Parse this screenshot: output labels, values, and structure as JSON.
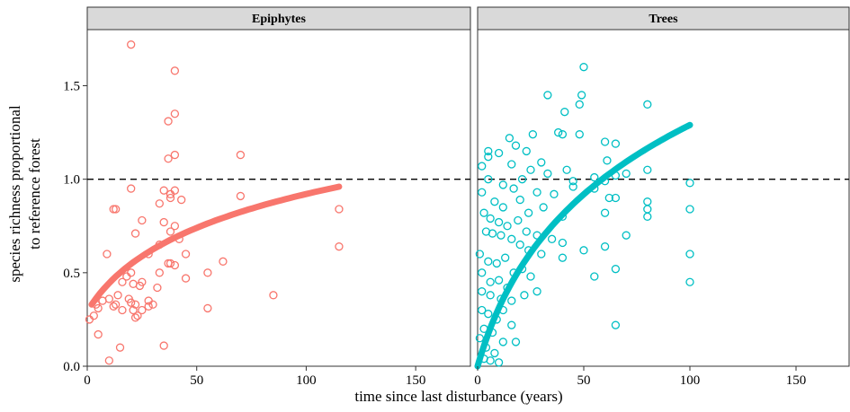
{
  "chart_data": {
    "type": "scatter",
    "xlabel": "time since last disturbance (years)",
    "ylabel": "species richness proportional to reference forest",
    "ylabel_lines": [
      "species richness proportional",
      "to reference forest"
    ],
    "xlim": [
      0,
      175
    ],
    "ylim": [
      0,
      1.8
    ],
    "x_ticks": [
      0,
      50,
      100,
      150
    ],
    "y_ticks": [
      0.0,
      0.5,
      1.0,
      1.5
    ],
    "y_tick_labels": [
      "0.0",
      "0.5",
      "1.0",
      "1.5"
    ],
    "reference_line": 1.0,
    "grid": false,
    "panels": [
      {
        "name": "Epiphytes",
        "color": "#f8766d",
        "points": [
          [
            20,
            1.72
          ],
          [
            40,
            1.58
          ],
          [
            40,
            1.35
          ],
          [
            37,
            1.31
          ],
          [
            70,
            1.13
          ],
          [
            40,
            1.13
          ],
          [
            37,
            1.11
          ],
          [
            20,
            0.95
          ],
          [
            35,
            0.94
          ],
          [
            40,
            0.94
          ],
          [
            38,
            0.92
          ],
          [
            43,
            0.89
          ],
          [
            70,
            0.91
          ],
          [
            33,
            0.87
          ],
          [
            38,
            0.9
          ],
          [
            12,
            0.84
          ],
          [
            13,
            0.84
          ],
          [
            35,
            0.77
          ],
          [
            25,
            0.78
          ],
          [
            40,
            0.75
          ],
          [
            22,
            0.71
          ],
          [
            38,
            0.72
          ],
          [
            42,
            0.68
          ],
          [
            33,
            0.65
          ],
          [
            28,
            0.6
          ],
          [
            45,
            0.6
          ],
          [
            9,
            0.6
          ],
          [
            62,
            0.56
          ],
          [
            37,
            0.55
          ],
          [
            38,
            0.55
          ],
          [
            40,
            0.54
          ],
          [
            20,
            0.5
          ],
          [
            25,
            0.45
          ],
          [
            33,
            0.5
          ],
          [
            55,
            0.5
          ],
          [
            18,
            0.48
          ],
          [
            16,
            0.45
          ],
          [
            21,
            0.44
          ],
          [
            32,
            0.42
          ],
          [
            45,
            0.47
          ],
          [
            24,
            0.43
          ],
          [
            14,
            0.38
          ],
          [
            19,
            0.36
          ],
          [
            28,
            0.35
          ],
          [
            30,
            0.33
          ],
          [
            7,
            0.35
          ],
          [
            10,
            0.36
          ],
          [
            5,
            0.31
          ],
          [
            20,
            0.34
          ],
          [
            22,
            0.33
          ],
          [
            4,
            0.33
          ],
          [
            12,
            0.32
          ],
          [
            85,
            0.38
          ],
          [
            3,
            0.27
          ],
          [
            21,
            0.3
          ],
          [
            23,
            0.27
          ],
          [
            25,
            0.3
          ],
          [
            16,
            0.3
          ],
          [
            55,
            0.31
          ],
          [
            28,
            0.32
          ],
          [
            13,
            0.33
          ],
          [
            22,
            0.26
          ],
          [
            1,
            0.25
          ],
          [
            5,
            0.17
          ],
          [
            15,
            0.1
          ],
          [
            35,
            0.11
          ],
          [
            10,
            0.03
          ],
          [
            115,
            0.84
          ],
          [
            115,
            0.64
          ]
        ],
        "fit": {
          "x_start": 2,
          "x_end": 115,
          "y_start": 0.33,
          "y_end": 0.96
        }
      },
      {
        "name": "Trees",
        "color": "#00bfc4",
        "points": [
          [
            50,
            1.6
          ],
          [
            49,
            1.45
          ],
          [
            33,
            1.45
          ],
          [
            48,
            1.4
          ],
          [
            41,
            1.36
          ],
          [
            80,
            1.4
          ],
          [
            40,
            1.24
          ],
          [
            26,
            1.24
          ],
          [
            38,
            1.25
          ],
          [
            48,
            1.24
          ],
          [
            60,
            1.2
          ],
          [
            65,
            1.19
          ],
          [
            61,
            1.1
          ],
          [
            15,
            1.22
          ],
          [
            18,
            1.18
          ],
          [
            5,
            1.15
          ],
          [
            5,
            1.12
          ],
          [
            10,
            1.14
          ],
          [
            23,
            1.15
          ],
          [
            16,
            1.08
          ],
          [
            30,
            1.09
          ],
          [
            25,
            1.05
          ],
          [
            33,
            1.03
          ],
          [
            42,
            1.05
          ],
          [
            2,
            1.07
          ],
          [
            45,
            0.99
          ],
          [
            55,
            1.01
          ],
          [
            70,
            1.03
          ],
          [
            80,
            1.05
          ],
          [
            65,
            1.02
          ],
          [
            60,
            0.99
          ],
          [
            5,
            1.0
          ],
          [
            12,
            0.97
          ],
          [
            17,
            0.95
          ],
          [
            21,
            1.0
          ],
          [
            28,
            0.93
          ],
          [
            36,
            0.92
          ],
          [
            45,
            0.96
          ],
          [
            62,
            0.9
          ],
          [
            55,
            0.95
          ],
          [
            65,
            0.9
          ],
          [
            80,
            0.88
          ],
          [
            80,
            0.84
          ],
          [
            100,
            0.98
          ],
          [
            100,
            0.84
          ],
          [
            2,
            0.93
          ],
          [
            8,
            0.88
          ],
          [
            12,
            0.85
          ],
          [
            20,
            0.89
          ],
          [
            24,
            0.82
          ],
          [
            31,
            0.85
          ],
          [
            40,
            0.8
          ],
          [
            60,
            0.82
          ],
          [
            80,
            0.8
          ],
          [
            3,
            0.82
          ],
          [
            6,
            0.79
          ],
          [
            10,
            0.77
          ],
          [
            14,
            0.75
          ],
          [
            19,
            0.78
          ],
          [
            23,
            0.72
          ],
          [
            28,
            0.7
          ],
          [
            35,
            0.68
          ],
          [
            40,
            0.66
          ],
          [
            50,
            0.62
          ],
          [
            4,
            0.72
          ],
          [
            7,
            0.71
          ],
          [
            11,
            0.7
          ],
          [
            16,
            0.68
          ],
          [
            20,
            0.65
          ],
          [
            24,
            0.62
          ],
          [
            30,
            0.6
          ],
          [
            40,
            0.58
          ],
          [
            55,
            0.48
          ],
          [
            65,
            0.52
          ],
          [
            60,
            0.64
          ],
          [
            70,
            0.7
          ],
          [
            1,
            0.6
          ],
          [
            5,
            0.56
          ],
          [
            9,
            0.55
          ],
          [
            13,
            0.58
          ],
          [
            17,
            0.5
          ],
          [
            21,
            0.52
          ],
          [
            25,
            0.48
          ],
          [
            2,
            0.5
          ],
          [
            6,
            0.45
          ],
          [
            10,
            0.46
          ],
          [
            14,
            0.42
          ],
          [
            22,
            0.38
          ],
          [
            28,
            0.4
          ],
          [
            100,
            0.6
          ],
          [
            100,
            0.45
          ],
          [
            2,
            0.4
          ],
          [
            6,
            0.38
          ],
          [
            11,
            0.36
          ],
          [
            16,
            0.35
          ],
          [
            2,
            0.3
          ],
          [
            5,
            0.28
          ],
          [
            9,
            0.25
          ],
          [
            12,
            0.3
          ],
          [
            16,
            0.22
          ],
          [
            3,
            0.2
          ],
          [
            7,
            0.18
          ],
          [
            12,
            0.13
          ],
          [
            18,
            0.13
          ],
          [
            65,
            0.22
          ],
          [
            1,
            0.15
          ],
          [
            4,
            0.1
          ],
          [
            8,
            0.07
          ],
          [
            3,
            0.04
          ],
          [
            6,
            0.03
          ],
          [
            10,
            0.02
          ]
        ],
        "fit": {
          "x_start": 0,
          "x_end": 100,
          "y_start": 0.0,
          "y_end": 1.29
        }
      }
    ]
  }
}
